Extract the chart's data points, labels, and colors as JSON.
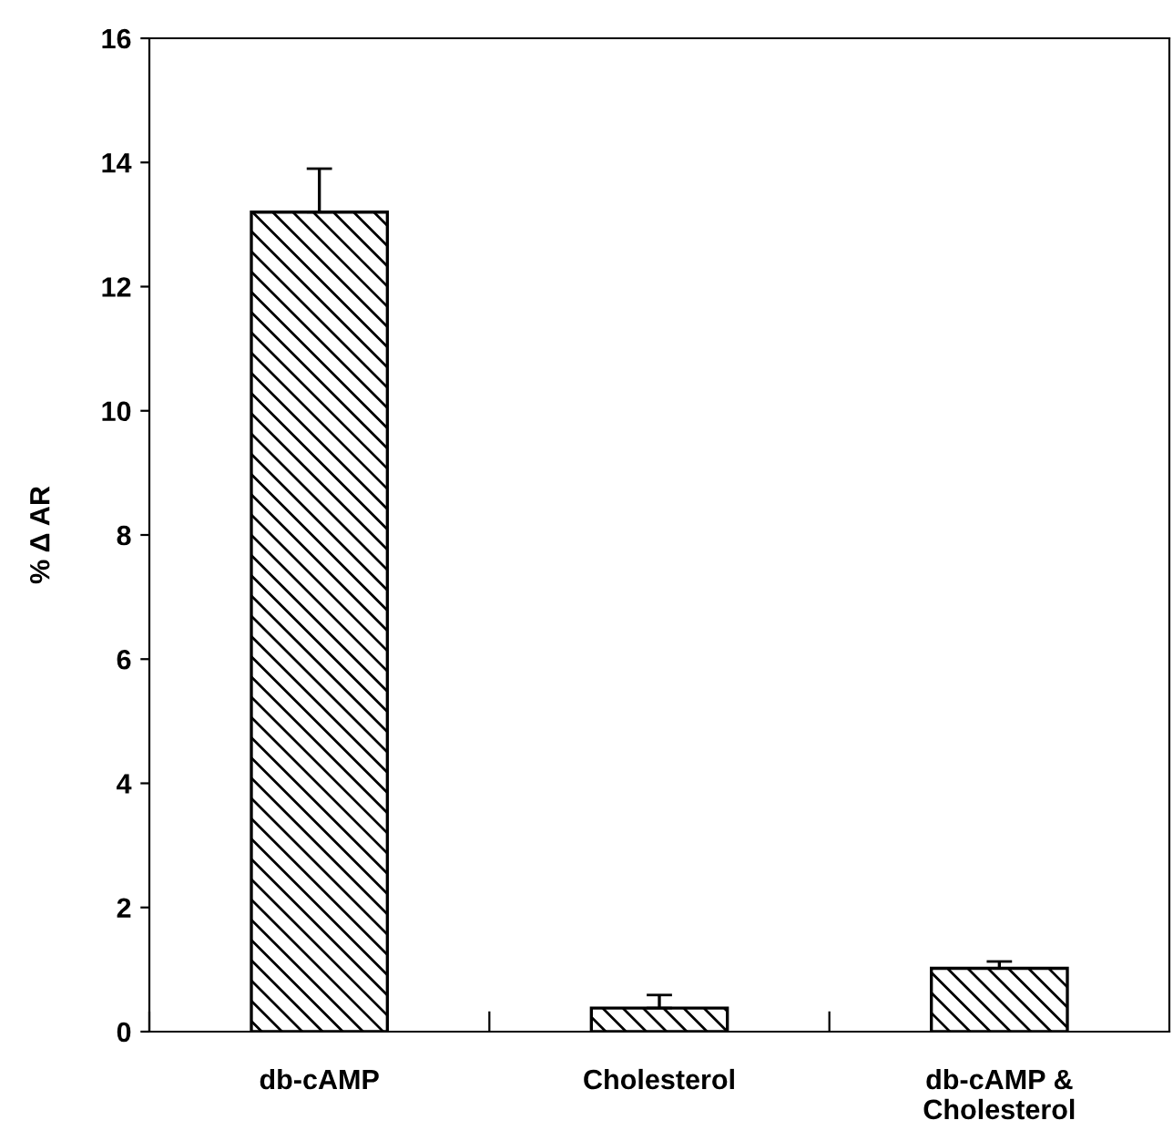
{
  "chart_data": {
    "type": "bar",
    "ylabel": "% Δ AR",
    "categories": [
      "db-cAMP",
      "Cholesterol",
      "db-cAMP &\nCholesterol"
    ],
    "values": [
      13.2,
      0.38,
      1.02
    ],
    "errors": [
      [
        13.2,
        13.9
      ],
      [
        0.38,
        0.59
      ],
      [
        1.02,
        1.13
      ]
    ],
    "color": "#000000",
    "ylim": [
      0,
      16
    ],
    "yticks": [
      0,
      2,
      4,
      6,
      8,
      10,
      12,
      14,
      16
    ],
    "grid": false,
    "legend": false
  }
}
